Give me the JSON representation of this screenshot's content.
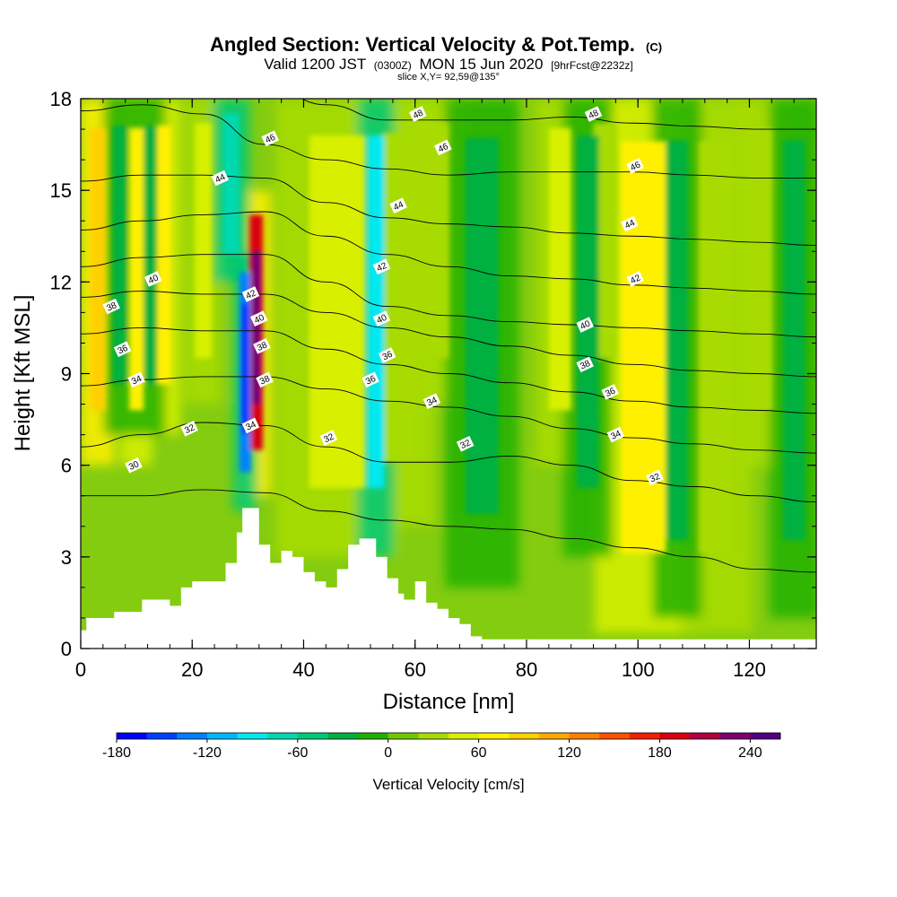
{
  "chart_data": {
    "type": "heatmap",
    "title": "Angled Section: Vertical Velocity & Pot.Temp.",
    "title_suffix": "(C)",
    "subtitle_parts": [
      "Valid 1200 JST",
      "(0300Z)",
      "MON 15 Jun 2020",
      "[9hrFcst@2232z]"
    ],
    "subtitle2": "slice X,Y= 92,59@135°",
    "xlabel": "Distance [nm]",
    "ylabel": "Height [Kft MSL]",
    "xlim": [
      0,
      132
    ],
    "ylim": [
      0,
      18
    ],
    "xticks": [
      "0",
      "20",
      "40",
      "60",
      "80",
      "100",
      "120"
    ],
    "xtick_values": [
      0,
      20,
      40,
      60,
      80,
      100,
      120
    ],
    "yticks": [
      "0",
      "3",
      "6",
      "9",
      "12",
      "15",
      "18"
    ],
    "ytick_values": [
      0,
      3,
      6,
      9,
      12,
      15,
      18
    ],
    "colorbar": {
      "label": "Vertical Velocity [cm/s]",
      "ticks": [
        "-180",
        "-120",
        "-60",
        "0",
        "60",
        "120",
        "180",
        "240"
      ],
      "tick_values": [
        -180,
        -120,
        -60,
        0,
        60,
        120,
        180,
        240
      ],
      "range": [
        -180,
        260
      ],
      "colors": [
        "#0000ff",
        "#0040ff",
        "#0080ff",
        "#00b8ff",
        "#00e8f0",
        "#00d8b0",
        "#00c878",
        "#00b040",
        "#20b000",
        "#70c800",
        "#a8dc00",
        "#d8f000",
        "#fff000",
        "#ffd000",
        "#ffa800",
        "#ff8000",
        "#ff5000",
        "#f02000",
        "#d80010",
        "#b00040",
        "#800070",
        "#500080"
      ]
    },
    "terrain": {
      "x": [
        0,
        1,
        2,
        6,
        11,
        16,
        18,
        20,
        23,
        26,
        28,
        29,
        31,
        32,
        34,
        36,
        38,
        40,
        42,
        44,
        46,
        48,
        50,
        51,
        53,
        55,
        57,
        58,
        60,
        62,
        64,
        66,
        68,
        70,
        72,
        132
      ],
      "height": [
        0.6,
        1.0,
        1.0,
        1.2,
        1.6,
        1.4,
        2.0,
        2.2,
        2.2,
        2.8,
        3.8,
        4.6,
        4.6,
        3.4,
        2.8,
        3.2,
        3.0,
        2.5,
        2.2,
        2.0,
        2.6,
        3.4,
        3.6,
        3.6,
        3.0,
        2.3,
        1.8,
        1.6,
        2.2,
        1.5,
        1.3,
        1.0,
        0.8,
        0.4,
        0.3,
        0.3
      ]
    },
    "updraft_cores": [
      {
        "x": 3,
        "top": 18,
        "bottom": 6,
        "w": 120,
        "width": 1.4
      },
      {
        "x": 10,
        "top": 18,
        "bottom": 6,
        "w": 100,
        "width": 1.3
      },
      {
        "x": 15,
        "top": 18,
        "bottom": 7,
        "w": 90,
        "width": 1.3
      },
      {
        "x": 22,
        "top": 18,
        "bottom": 8,
        "w": 60,
        "width": 1.5
      },
      {
        "x": 31.5,
        "top": 15,
        "bottom": 5,
        "w": 240,
        "width": 1.2
      },
      {
        "x": 46,
        "top": 18,
        "bottom": 3,
        "w": 70,
        "width": 5
      },
      {
        "x": 57,
        "top": 18,
        "bottom": 4,
        "w": 50,
        "width": 3
      },
      {
        "x": 63,
        "top": 18,
        "bottom": 8,
        "w": 40,
        "width": 3
      },
      {
        "x": 86,
        "top": 18,
        "bottom": 6,
        "w": 60,
        "width": 2
      },
      {
        "x": 94,
        "top": 18,
        "bottom": 8,
        "w": 40,
        "width": 2
      },
      {
        "x": 101,
        "top": 18,
        "bottom": 0.5,
        "w": 80,
        "width": 4
      },
      {
        "x": 114,
        "top": 18,
        "bottom": 0.5,
        "w": 50,
        "width": 3
      },
      {
        "x": 122,
        "top": 18,
        "bottom": 6,
        "w": 40,
        "width": 2
      }
    ],
    "downdraft_cores": [
      {
        "x": 7,
        "top": 18,
        "bottom": 7,
        "w": -40,
        "width": 1.3
      },
      {
        "x": 12.5,
        "top": 18,
        "bottom": 7,
        "w": -40,
        "width": 1.2
      },
      {
        "x": 29.5,
        "top": 13,
        "bottom": 4.5,
        "w": -180,
        "width": 1.0
      },
      {
        "x": 53,
        "top": 18,
        "bottom": 3,
        "w": -110,
        "width": 1.5
      },
      {
        "x": 27,
        "top": 18,
        "bottom": 12,
        "w": -90,
        "width": 1.5
      },
      {
        "x": 72,
        "top": 18,
        "bottom": 2,
        "w": -30,
        "width": 3
      },
      {
        "x": 91,
        "top": 18,
        "bottom": 3,
        "w": -40,
        "width": 2
      },
      {
        "x": 107,
        "top": 18,
        "bottom": 1,
        "w": -30,
        "width": 2
      },
      {
        "x": 128,
        "top": 18,
        "bottom": 1,
        "w": -40,
        "width": 2
      }
    ],
    "isentropes": [
      {
        "value": 30,
        "heights": [
          5.0,
          5.0,
          5.2,
          5.1,
          4.5,
          4.2,
          4.0,
          3.9,
          3.6,
          3.3,
          3.0,
          2.6,
          2.5
        ]
      },
      {
        "value": 32,
        "heights": [
          6.6,
          7.0,
          7.4,
          7.3,
          6.6,
          6.1,
          6.1,
          6.3,
          6.0,
          5.5,
          5.3,
          5.0,
          4.8
        ]
      },
      {
        "value": 34,
        "heights": [
          8.6,
          8.8,
          8.9,
          8.9,
          8.5,
          8.1,
          7.9,
          7.6,
          7.2,
          6.9,
          6.7,
          6.5,
          6.4
        ]
      },
      {
        "value": 36,
        "heights": [
          10.3,
          10.5,
          10.4,
          10.4,
          9.8,
          9.3,
          9.0,
          8.7,
          8.4,
          8.1,
          7.9,
          7.8,
          7.7
        ]
      },
      {
        "value": 38,
        "heights": [
          11.5,
          11.7,
          11.6,
          11.6,
          11.0,
          10.5,
          10.2,
          9.9,
          9.6,
          9.3,
          9.1,
          9.0,
          8.9
        ]
      },
      {
        "value": 40,
        "heights": [
          12.5,
          12.8,
          12.9,
          12.9,
          12.0,
          11.2,
          10.9,
          10.7,
          10.6,
          10.5,
          10.4,
          10.3,
          10.2
        ]
      },
      {
        "value": 42,
        "heights": [
          13.7,
          14.0,
          14.2,
          14.3,
          13.5,
          12.9,
          12.5,
          12.2,
          12.1,
          11.9,
          11.8,
          11.7,
          11.6
        ]
      },
      {
        "value": 44,
        "heights": [
          15.3,
          15.5,
          15.5,
          15.4,
          14.6,
          14.1,
          13.9,
          13.8,
          13.6,
          13.5,
          13.4,
          13.3,
          13.2
        ]
      },
      {
        "value": 46,
        "heights": [
          17.6,
          17.8,
          17.5,
          16.5,
          16.0,
          15.7,
          15.5,
          15.6,
          15.6,
          15.6,
          15.5,
          15.4,
          15.4
        ]
      },
      {
        "value": 48,
        "heights": [
          19.5,
          19.5,
          19.2,
          18.5,
          17.8,
          17.3,
          17.3,
          17.3,
          17.4,
          17.2,
          17.1,
          17.0,
          17.0
        ]
      }
    ],
    "isentrope_x": [
      0,
      11,
      22,
      33,
      44,
      55,
      66,
      77,
      88,
      99,
      110,
      121,
      132
    ],
    "contour_labels": [
      {
        "text": "30",
        "x": 9.5,
        "y": 6.0
      },
      {
        "text": "32",
        "x": 19.5,
        "y": 7.2
      },
      {
        "text": "32",
        "x": 44.5,
        "y": 6.9
      },
      {
        "text": "32",
        "x": 69,
        "y": 6.7
      },
      {
        "text": "32",
        "x": 103,
        "y": 5.6
      },
      {
        "text": "34",
        "x": 10,
        "y": 8.8
      },
      {
        "text": "34",
        "x": 30.5,
        "y": 7.3
      },
      {
        "text": "34",
        "x": 63,
        "y": 8.1
      },
      {
        "text": "34",
        "x": 96,
        "y": 7.0
      },
      {
        "text": "36",
        "x": 7.5,
        "y": 9.8
      },
      {
        "text": "36",
        "x": 52,
        "y": 8.8
      },
      {
        "text": "36",
        "x": 55,
        "y": 9.6
      },
      {
        "text": "36",
        "x": 95,
        "y": 8.4
      },
      {
        "text": "38",
        "x": 5.5,
        "y": 11.2
      },
      {
        "text": "38",
        "x": 32.5,
        "y": 9.9
      },
      {
        "text": "38",
        "x": 33,
        "y": 8.8
      },
      {
        "text": "38",
        "x": 90.5,
        "y": 9.3
      },
      {
        "text": "40",
        "x": 13,
        "y": 12.1
      },
      {
        "text": "40",
        "x": 32,
        "y": 10.8
      },
      {
        "text": "40",
        "x": 54,
        "y": 10.8
      },
      {
        "text": "40",
        "x": 90.5,
        "y": 10.6
      },
      {
        "text": "42",
        "x": 30.5,
        "y": 11.6
      },
      {
        "text": "42",
        "x": 54,
        "y": 12.5
      },
      {
        "text": "42",
        "x": 99.5,
        "y": 12.1
      },
      {
        "text": "44",
        "x": 25,
        "y": 15.4
      },
      {
        "text": "44",
        "x": 57,
        "y": 14.5
      },
      {
        "text": "44",
        "x": 98.5,
        "y": 13.9
      },
      {
        "text": "46",
        "x": 34,
        "y": 16.7
      },
      {
        "text": "46",
        "x": 65,
        "y": 16.4
      },
      {
        "text": "46",
        "x": 99.5,
        "y": 15.8
      },
      {
        "text": "48",
        "x": 60.5,
        "y": 17.5
      },
      {
        "text": "48",
        "x": 92,
        "y": 17.5
      }
    ]
  }
}
